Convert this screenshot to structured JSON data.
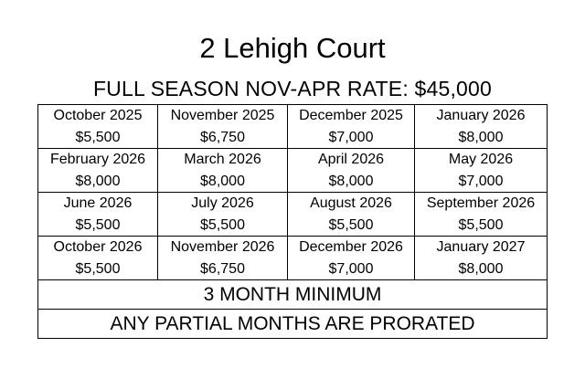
{
  "title": "2 Lehigh Court",
  "subtitle": "FULL SEASON NOV-APR RATE: $45,000",
  "rows": [
    [
      {
        "month": "October 2025",
        "rate": "$5,500"
      },
      {
        "month": "November 2025",
        "rate": "$6,750"
      },
      {
        "month": "December 2025",
        "rate": "$7,000"
      },
      {
        "month": "January 2026",
        "rate": "$8,000"
      }
    ],
    [
      {
        "month": "February 2026",
        "rate": "$8,000"
      },
      {
        "month": "March 2026",
        "rate": "$8,000"
      },
      {
        "month": "April 2026",
        "rate": "$8,000"
      },
      {
        "month": "May 2026",
        "rate": "$7,000"
      }
    ],
    [
      {
        "month": "June 2026",
        "rate": "$5,500"
      },
      {
        "month": "July 2026",
        "rate": "$5,500"
      },
      {
        "month": "August 2026",
        "rate": "$5,500"
      },
      {
        "month": "September 2026",
        "rate": "$5,500"
      }
    ],
    [
      {
        "month": "October 2026",
        "rate": "$5,500"
      },
      {
        "month": "November 2026",
        "rate": "$6,750"
      },
      {
        "month": "December 2026",
        "rate": "$7,000"
      },
      {
        "month": "January 2027",
        "rate": "$8,000"
      }
    ]
  ],
  "notes": {
    "minimum": "3 MONTH MINIMUM",
    "prorated": "ANY PARTIAL MONTHS ARE PRORATED"
  }
}
